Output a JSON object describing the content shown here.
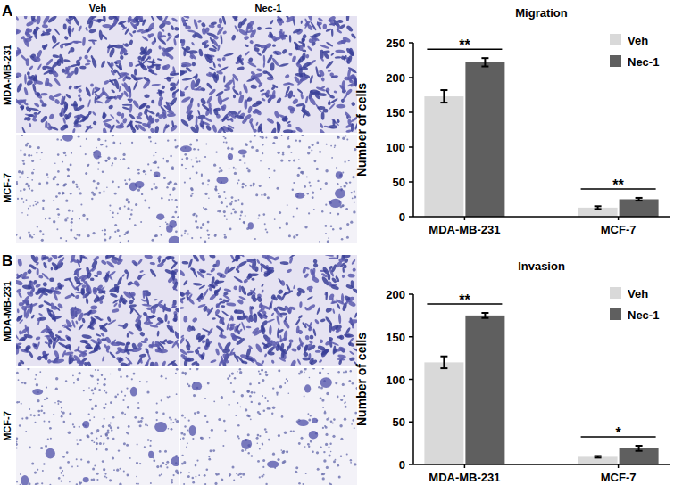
{
  "figure": {
    "panels": [
      {
        "label": "A",
        "columns": [
          "Veh",
          "Nec-1"
        ],
        "rows": [
          "MDA-MB-231",
          "MCF-7"
        ]
      },
      {
        "label": "B",
        "columns": [],
        "rows": [
          "MDA-MB-231",
          "MCF-7"
        ]
      }
    ]
  },
  "chart_data": [
    {
      "type": "bar",
      "title": "Migration",
      "y_label": "Number of cells",
      "categories": [
        "MDA-MB-231",
        "MCF-7"
      ],
      "series": [
        {
          "name": "Veh",
          "color": "#d9d9d9",
          "values": [
            173,
            13
          ],
          "errors": [
            9,
            2
          ]
        },
        {
          "name": "Nec-1",
          "color": "#5f5f5f",
          "values": [
            222,
            25
          ],
          "errors": [
            6,
            2
          ]
        }
      ],
      "annotations": [
        "**",
        "**"
      ],
      "ylim": [
        0,
        250
      ],
      "yticks": [
        0,
        50,
        100,
        150,
        200,
        250
      ],
      "grid": false,
      "legend": "upper right"
    },
    {
      "type": "bar",
      "title": "Invasion",
      "y_label": "Number of cells",
      "categories": [
        "MDA-MB-231",
        "MCF-7"
      ],
      "series": [
        {
          "name": "Veh",
          "color": "#d9d9d9",
          "values": [
            120,
            9
          ],
          "errors": [
            7,
            1
          ]
        },
        {
          "name": "Nec-1",
          "color": "#5f5f5f",
          "values": [
            175,
            19
          ],
          "errors": [
            3,
            3
          ]
        }
      ],
      "annotations": [
        "**",
        "*"
      ],
      "ylim": [
        0,
        200
      ],
      "yticks": [
        0,
        50,
        100,
        150,
        200
      ],
      "grid": false,
      "legend": "upper right"
    }
  ]
}
